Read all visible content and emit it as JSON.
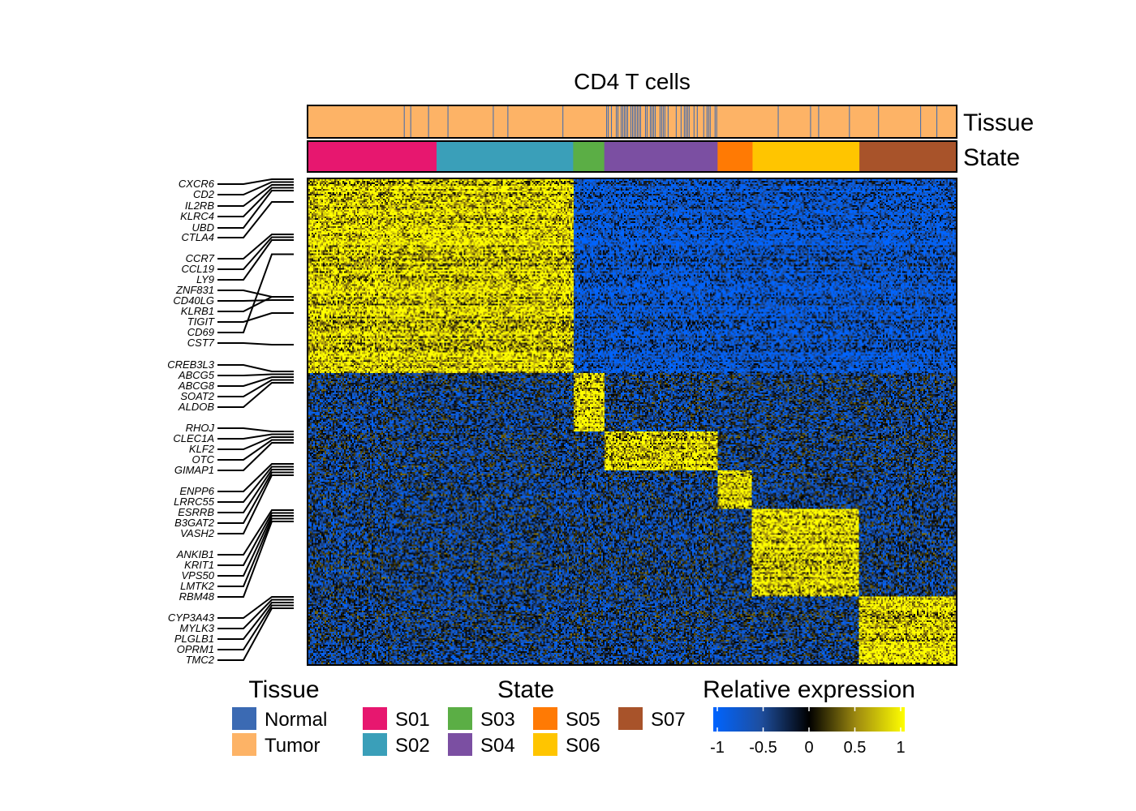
{
  "chart_data": {
    "type": "heatmap",
    "title": "CD4 T cells",
    "annotation_rows": [
      "Tissue",
      "State"
    ],
    "tissue_colors": {
      "Normal": "#3B6AB3",
      "Tumor": "#FDB366"
    },
    "state_colors": {
      "S01": "#E7176F",
      "S02": "#3A9FB9",
      "S03": "#5BAE45",
      "S04": "#7B4FA2",
      "S05": "#FF7A04",
      "S06": "#FFC500",
      "S07": "#A8532A"
    },
    "states": [
      {
        "name": "S01",
        "fraction": 0.198
      },
      {
        "name": "S02",
        "fraction": 0.211
      },
      {
        "name": "S03",
        "fraction": 0.048
      },
      {
        "name": "S04",
        "fraction": 0.175
      },
      {
        "name": "S05",
        "fraction": 0.054
      },
      {
        "name": "S06",
        "fraction": 0.165
      },
      {
        "name": "S07",
        "fraction": 0.149
      }
    ],
    "normal_cell_fraction_by_state": [
      0.03,
      0.06,
      0.04,
      0.65,
      0.02,
      0.06,
      0.03
    ],
    "genes": [
      "CXCR6",
      "CD2",
      "IL2RB",
      "KLRC4",
      "UBD",
      "CTLA4",
      "CCR7",
      "CCL19",
      "LY9",
      "ZNF831",
      "CD40LG",
      "KLRB1",
      "TIGIT",
      "CD69",
      "CST7",
      "CREB3L3",
      "ABCG5",
      "ABCG8",
      "SOAT2",
      "ALDOB",
      "RHOJ",
      "CLEC1A",
      "KLF2",
      "OTC",
      "GIMAP1",
      "ENPP6",
      "LRRC55",
      "ESRRB",
      "B3GAT2",
      "VASH2",
      "ANKIB1",
      "KRIT1",
      "VPS50",
      "LMTK2",
      "RBM48",
      "CYP3A43",
      "MYLK3",
      "PLGLB1",
      "OPRM1",
      "TMC2"
    ],
    "gene_blocks": [
      {
        "rows": [
          0,
          0.115
        ],
        "high_in_state": "S01",
        "high_in_states": [
          "S01",
          "S02"
        ]
      },
      {
        "rows": [
          0.115,
          0.4
        ],
        "high_in_state": "S02",
        "high_in_states": [
          "S01",
          "S02"
        ]
      },
      {
        "rows": [
          0.4,
          0.52
        ],
        "high_in_state": "S03",
        "high_in_states": [
          "S03"
        ]
      },
      {
        "rows": [
          0.52,
          0.6
        ],
        "high_in_state": "S04",
        "high_in_states": [
          "S04"
        ]
      },
      {
        "rows": [
          0.6,
          0.68
        ],
        "high_in_state": "S05",
        "high_in_states": [
          "S05"
        ]
      },
      {
        "rows": [
          0.68,
          0.86
        ],
        "high_in_state": "S06",
        "high_in_states": [
          "S06"
        ]
      },
      {
        "rows": [
          0.86,
          1.0
        ],
        "high_in_state": "S07",
        "high_in_states": [
          "S07"
        ]
      }
    ],
    "color_scale": {
      "label": "Relative expression",
      "min": -1,
      "max": 1,
      "colors": [
        "#0064FF",
        "#1E4E9E",
        "#000000",
        "#A08C10",
        "#FFFF00"
      ],
      "ticks": [
        "-1",
        "-0.5",
        "0",
        "0.5",
        "1"
      ]
    }
  },
  "annotations": {
    "tissue_label": "Tissue",
    "state_label": "State"
  },
  "legend": {
    "tissue_title": "Tissue",
    "state_title": "State",
    "expression_title": "Relative expression",
    "tissue_items": [
      {
        "label": "Normal",
        "color": "#3B6AB3"
      },
      {
        "label": "Tumor",
        "color": "#FDB366"
      }
    ],
    "state_items": [
      {
        "label": "S01",
        "color": "#E7176F"
      },
      {
        "label": "S02",
        "color": "#3A9FB9"
      },
      {
        "label": "S03",
        "color": "#5BAE45"
      },
      {
        "label": "S04",
        "color": "#7B4FA2"
      },
      {
        "label": "S05",
        "color": "#FF7A04"
      },
      {
        "label": "S06",
        "color": "#FFC500"
      },
      {
        "label": "S07",
        "color": "#A8532A"
      }
    ]
  }
}
